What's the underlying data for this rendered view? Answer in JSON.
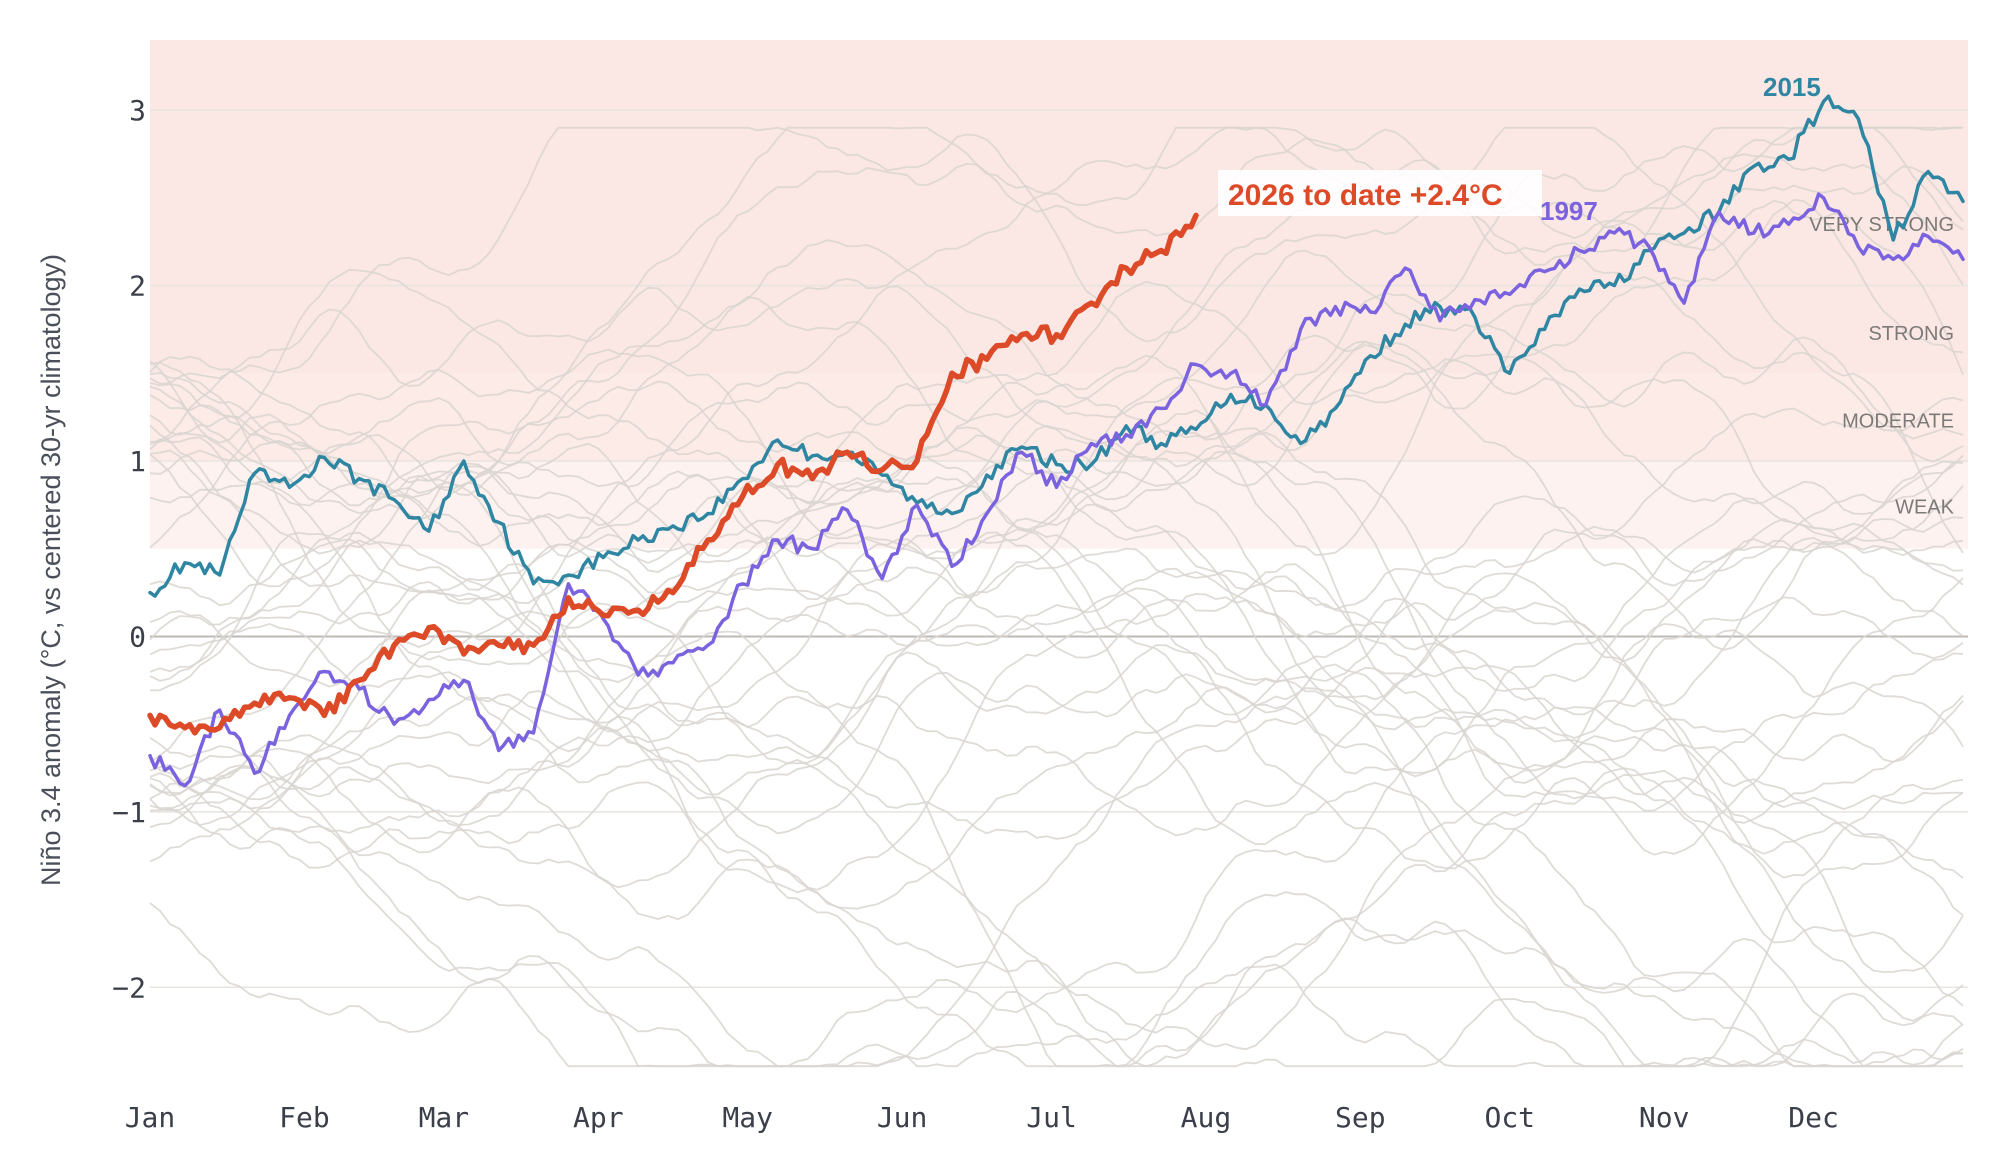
{
  "chart_data": {
    "type": "line",
    "title": "",
    "xlabel": "",
    "ylabel": "Niño 3.4 anomaly (°C, vs centered 30-yr climatology)",
    "xlim": [
      0,
      365
    ],
    "ylim": [
      -2.5,
      3.4
    ],
    "y_ticks": [
      {
        "value": -2,
        "label": "−2"
      },
      {
        "value": -1,
        "label": "−1"
      },
      {
        "value": 0,
        "label": "0"
      },
      {
        "value": 1,
        "label": "1"
      },
      {
        "value": 2,
        "label": "2"
      },
      {
        "value": 3,
        "label": "3"
      }
    ],
    "x_ticks": [
      {
        "value": 0,
        "label": "Jan"
      },
      {
        "value": 31,
        "label": "Feb"
      },
      {
        "value": 59,
        "label": "Mar"
      },
      {
        "value": 90,
        "label": "Apr"
      },
      {
        "value": 120,
        "label": "May"
      },
      {
        "value": 151,
        "label": "Jun"
      },
      {
        "value": 181,
        "label": "Jul"
      },
      {
        "value": 212,
        "label": "Aug"
      },
      {
        "value": 243,
        "label": "Sep"
      },
      {
        "value": 273,
        "label": "Oct"
      },
      {
        "value": 304,
        "label": "Nov"
      },
      {
        "value": 334,
        "label": "Dec"
      }
    ],
    "grid": true,
    "bands": [
      {
        "label": "WEAK",
        "from": 0.5,
        "to": 1.0,
        "color": "#fdf2ef"
      },
      {
        "label": "MODERATE",
        "from": 1.0,
        "to": 1.5,
        "color": "#fcebe7"
      },
      {
        "label": "STRONG",
        "from": 1.5,
        "to": 2.0,
        "color": "#fbe8e4"
      },
      {
        "label": "VERY STRONG",
        "from": 2.0,
        "to": 3.4,
        "color": "#fbe7e3"
      }
    ],
    "background_years_color": "#d9d5d0",
    "background_years_count": 40,
    "series": [
      {
        "name": "2015",
        "color": "#2f86a3",
        "x": [
          0,
          7,
          14,
          21,
          28,
          35,
          42,
          49,
          56,
          63,
          70,
          77,
          84,
          91,
          98,
          105,
          112,
          119,
          126,
          133,
          140,
          147,
          154,
          161,
          168,
          175,
          182,
          189,
          196,
          203,
          210,
          217,
          224,
          231,
          238,
          245,
          252,
          259,
          266,
          273,
          280,
          287,
          294,
          301,
          308,
          315,
          322,
          329,
          336,
          343,
          350,
          357,
          364
        ],
        "values": [
          0.25,
          0.42,
          0.35,
          0.93,
          0.85,
          1.02,
          0.9,
          0.78,
          0.6,
          1.0,
          0.65,
          0.3,
          0.35,
          0.45,
          0.55,
          0.63,
          0.7,
          0.9,
          1.12,
          1.03,
          1.05,
          0.92,
          0.76,
          0.7,
          0.92,
          1.08,
          0.98,
          0.98,
          1.2,
          1.1,
          1.18,
          1.38,
          1.32,
          1.1,
          1.3,
          1.6,
          1.78,
          1.88,
          1.82,
          1.5,
          1.75,
          1.98,
          2.0,
          2.2,
          2.3,
          2.42,
          2.68,
          2.72,
          3.05,
          2.95,
          2.26,
          2.65,
          2.48
        ]
      },
      {
        "name": "1997",
        "color": "#7b63e0",
        "x": [
          0,
          7,
          14,
          21,
          28,
          35,
          42,
          49,
          56,
          63,
          70,
          77,
          84,
          91,
          98,
          105,
          112,
          119,
          126,
          133,
          140,
          147,
          154,
          161,
          168,
          175,
          182,
          189,
          196,
          203,
          210,
          217,
          224,
          231,
          238,
          245,
          252,
          259,
          266,
          273,
          280,
          287,
          294,
          301,
          308,
          315,
          322,
          329,
          336,
          343,
          350,
          357,
          364
        ],
        "values": [
          -0.68,
          -0.85,
          -0.42,
          -0.78,
          -0.45,
          -0.2,
          -0.3,
          -0.5,
          -0.36,
          -0.25,
          -0.65,
          -0.55,
          0.3,
          0.1,
          -0.22,
          -0.15,
          -0.05,
          0.3,
          0.55,
          0.5,
          0.72,
          0.33,
          0.75,
          0.4,
          0.7,
          1.05,
          0.85,
          1.1,
          1.15,
          1.3,
          1.55,
          1.5,
          1.32,
          1.75,
          1.88,
          1.85,
          2.1,
          1.8,
          1.92,
          1.95,
          2.08,
          2.2,
          2.3,
          2.22,
          1.9,
          2.42,
          2.3,
          2.35,
          2.5,
          2.22,
          2.15,
          2.28,
          2.15
        ]
      },
      {
        "name": "2026 to date",
        "color": "#dc4a28",
        "x": [
          0,
          7,
          14,
          21,
          28,
          35,
          42,
          49,
          56,
          63,
          70,
          77,
          84,
          91,
          98,
          105,
          112,
          119,
          126,
          133,
          140,
          147,
          154,
          161,
          168,
          175,
          182,
          189,
          196,
          203,
          210
        ],
        "values": [
          -0.45,
          -0.52,
          -0.52,
          -0.38,
          -0.35,
          -0.45,
          -0.25,
          -0.05,
          0.05,
          -0.1,
          -0.05,
          -0.05,
          0.22,
          0.12,
          0.15,
          0.25,
          0.55,
          0.8,
          0.98,
          0.9,
          1.05,
          0.95,
          1.0,
          1.5,
          1.58,
          1.72,
          1.72,
          1.9,
          2.1,
          2.2,
          2.4
        ]
      }
    ],
    "annotations": [
      {
        "series": "2026 to date",
        "text": "2026 to date",
        "value_text": "+2.4°C"
      },
      {
        "series": "1997",
        "text": "1997"
      },
      {
        "series": "2015",
        "text": "2015"
      }
    ]
  }
}
